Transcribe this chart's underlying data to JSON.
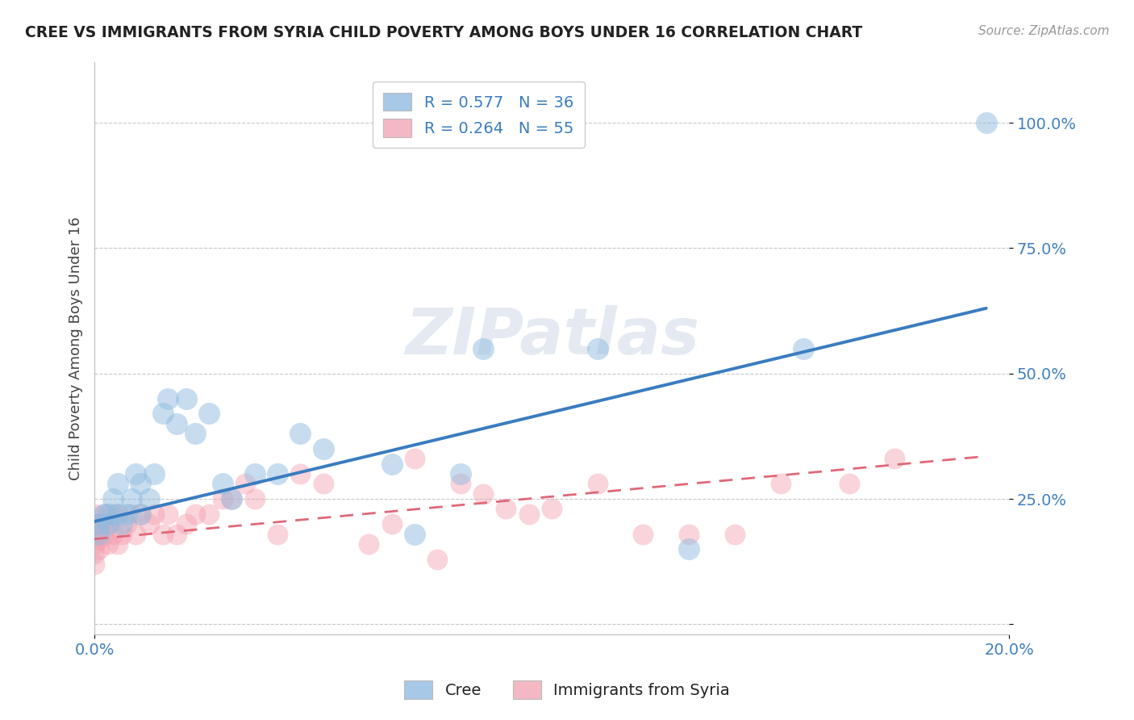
{
  "title": "CREE VS IMMIGRANTS FROM SYRIA CHILD POVERTY AMONG BOYS UNDER 16 CORRELATION CHART",
  "source": "Source: ZipAtlas.com",
  "ylabel": "Child Poverty Among Boys Under 16",
  "watermark": "ZIPatlas",
  "legend_entries": [
    {
      "label": "R = 0.577   N = 36",
      "color": "#a8c8e8"
    },
    {
      "label": "R = 0.264   N = 55",
      "color": "#f4b8c4"
    }
  ],
  "bottom_legend": [
    "Cree",
    "Immigrants from Syria"
  ],
  "bottom_legend_colors": [
    "#a8c8e8",
    "#f4b8c4"
  ],
  "xlim": [
    0.0,
    0.2
  ],
  "ylim": [
    -0.02,
    1.12
  ],
  "yticks": [
    0.0,
    0.25,
    0.5,
    0.75,
    1.0
  ],
  "ytick_labels": [
    "",
    "25.0%",
    "50.0%",
    "75.0%",
    "100.0%"
  ],
  "xtick_labels": [
    "0.0%",
    "20.0%"
  ],
  "cree_color": "#90bce0",
  "syria_color": "#f4a0b0",
  "cree_line_color": "#3a7cc0",
  "syria_line_color": "#e06878",
  "tick_label_color": "#4080c0",
  "cree_scatter": {
    "x": [
      0.001,
      0.001,
      0.002,
      0.003,
      0.003,
      0.004,
      0.005,
      0.005,
      0.006,
      0.007,
      0.008,
      0.009,
      0.01,
      0.01,
      0.012,
      0.013,
      0.015,
      0.016,
      0.018,
      0.02,
      0.022,
      0.025,
      0.028,
      0.03,
      0.035,
      0.04,
      0.045,
      0.05,
      0.065,
      0.07,
      0.08,
      0.085,
      0.11,
      0.13,
      0.155,
      0.195
    ],
    "y": [
      0.18,
      0.2,
      0.22,
      0.2,
      0.22,
      0.25,
      0.22,
      0.28,
      0.2,
      0.22,
      0.25,
      0.3,
      0.22,
      0.28,
      0.25,
      0.3,
      0.42,
      0.45,
      0.4,
      0.45,
      0.38,
      0.42,
      0.28,
      0.25,
      0.3,
      0.3,
      0.38,
      0.35,
      0.32,
      0.18,
      0.3,
      0.55,
      0.55,
      0.15,
      0.55,
      1.0
    ]
  },
  "syria_scatter": {
    "x": [
      0.0,
      0.0,
      0.0,
      0.0,
      0.0,
      0.0,
      0.0,
      0.001,
      0.001,
      0.001,
      0.002,
      0.002,
      0.002,
      0.003,
      0.003,
      0.004,
      0.004,
      0.005,
      0.005,
      0.006,
      0.007,
      0.008,
      0.009,
      0.01,
      0.012,
      0.013,
      0.015,
      0.016,
      0.018,
      0.02,
      0.022,
      0.025,
      0.028,
      0.03,
      0.033,
      0.035,
      0.04,
      0.045,
      0.05,
      0.06,
      0.065,
      0.07,
      0.075,
      0.08,
      0.085,
      0.09,
      0.095,
      0.1,
      0.11,
      0.12,
      0.13,
      0.14,
      0.15,
      0.165,
      0.175
    ],
    "y": [
      0.12,
      0.14,
      0.16,
      0.18,
      0.2,
      0.2,
      0.22,
      0.15,
      0.17,
      0.2,
      0.18,
      0.2,
      0.22,
      0.16,
      0.2,
      0.18,
      0.22,
      0.16,
      0.22,
      0.18,
      0.2,
      0.22,
      0.18,
      0.22,
      0.2,
      0.22,
      0.18,
      0.22,
      0.18,
      0.2,
      0.22,
      0.22,
      0.25,
      0.25,
      0.28,
      0.25,
      0.18,
      0.3,
      0.28,
      0.16,
      0.2,
      0.33,
      0.13,
      0.28,
      0.26,
      0.23,
      0.22,
      0.23,
      0.28,
      0.18,
      0.18,
      0.18,
      0.28,
      0.28,
      0.33
    ]
  },
  "cree_line": {
    "x0": 0.0,
    "x1": 0.195,
    "y0": 0.205,
    "y1": 0.63
  },
  "syria_line": {
    "x0": 0.0,
    "x1": 0.195,
    "y0": 0.17,
    "y1": 0.335
  },
  "background_color": "#ffffff",
  "grid_color": "#c8c8c8"
}
